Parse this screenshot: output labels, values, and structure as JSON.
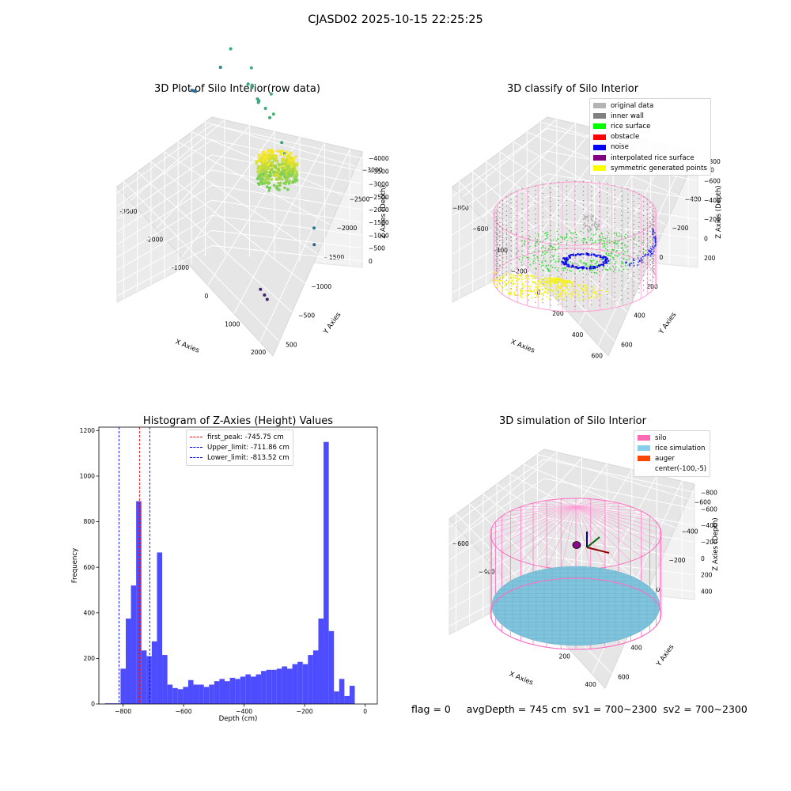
{
  "figure_title": "CJASD02 2025-10-15 22:25:25",
  "footer": {
    "flag": "flag = 0",
    "status": "avgDepth = 745 cm  sv1 = 700~2300  sv2 = 700~2300"
  },
  "chart_data": [
    {
      "type": "scatter",
      "projection": "3d",
      "title": "3D Plot of Silo Interior(row data)",
      "xlabel": "X Axies",
      "ylabel": "Y Axies",
      "zlabel": "Z Axies (Depth)",
      "xlim": [
        -3500,
        2500
      ],
      "ylim": [
        -3200,
        800
      ],
      "zlim": [
        -4200,
        200
      ],
      "xticks": [
        "-3000",
        "-2000",
        "-1000",
        "0",
        "1000",
        "2000"
      ],
      "yticks": [
        "500",
        "−500",
        "−1000",
        "−1500",
        "−2000",
        "−2500",
        "−3000"
      ],
      "zticks": [
        "0",
        "−500",
        "−1000",
        "−1500",
        "−2000",
        "−2500",
        "−3000",
        "−3500",
        "−4000"
      ],
      "colormap": "viridis",
      "points": [
        {
          "x": 1200,
          "y": -2300,
          "z": -3800
        },
        {
          "x": 1400,
          "y": -2350,
          "z": -3780
        },
        {
          "x": 1550,
          "y": -2400,
          "z": -3760
        },
        {
          "x": -3200,
          "y": -300,
          "z": -2700
        },
        {
          "x": -3250,
          "y": -320,
          "z": -2720
        },
        {
          "x": -3150,
          "y": -280,
          "z": -2690
        },
        {
          "x": -2900,
          "y": 500,
          "z": -2200
        },
        {
          "x": -2600,
          "y": 600,
          "z": -1500
        },
        {
          "x": 1800,
          "y": -700,
          "z": -2400
        },
        {
          "x": 1850,
          "y": -750,
          "z": -2800
        },
        {
          "x": -1600,
          "y": 400,
          "z": -1700
        },
        {
          "x": -1700,
          "y": 350,
          "z": -1650
        },
        {
          "x": -1500,
          "y": 300,
          "z": -1500
        },
        {
          "x": -1800,
          "y": 600,
          "z": -1400
        },
        {
          "x": -1200,
          "y": 200,
          "z": -1600
        },
        {
          "x": -1100,
          "y": 150,
          "z": -1550
        },
        {
          "x": -1150,
          "y": 180,
          "z": -1650
        },
        {
          "x": -800,
          "y": 100,
          "z": -1500
        },
        {
          "x": -500,
          "y": -50,
          "z": -1450
        },
        {
          "x": -400,
          "y": 0,
          "z": -1300
        },
        {
          "x": 100,
          "y": -200,
          "z": -1600
        },
        {
          "x": 300,
          "y": -300,
          "z": -1700
        },
        {
          "x": -900,
          "y": 450,
          "z": -1350
        }
      ],
      "surface_ring": {
        "center_x": -100,
        "center_y": -50,
        "outer_radius": 700,
        "inner_radius": 250,
        "z_range": [
          -900,
          -100
        ]
      }
    },
    {
      "type": "scatter",
      "projection": "3d",
      "title": "3D classify of Silo Interior",
      "xlabel": "X Axies",
      "ylabel": "Y Axies",
      "zlabel": "Z Axies (Depth)",
      "xlim": [
        -800,
        600
      ],
      "ylim": [
        -700,
        700
      ],
      "zlim": [
        -900,
        300
      ],
      "xticks": [
        "−800",
        "−600",
        "−400",
        "−200",
        "0",
        "200",
        "400",
        "600"
      ],
      "yticks": [
        "600",
        "400",
        "200",
        "0",
        "−200",
        "−400",
        "−600"
      ],
      "zticks": [
        "200",
        "0",
        "−200",
        "−400",
        "−600",
        "−800"
      ],
      "legend": {
        "location": "upper right",
        "entries": [
          {
            "label": "original data",
            "color": "#b3b3b3"
          },
          {
            "label": "inner wall",
            "color": "#808080"
          },
          {
            "label": "rice surface",
            "color": "#00ff00"
          },
          {
            "label": "obstacle",
            "color": "#ff0000"
          },
          {
            "label": "noise",
            "color": "#0000ff"
          },
          {
            "label": "interpolated rice surface",
            "color": "#800080"
          },
          {
            "label": "symmetric generated points",
            "color": "#ffff00"
          }
        ]
      },
      "silo": {
        "radius": 600,
        "z_top": 250,
        "z_bottom": -800
      },
      "classes": {
        "inner_wall": {
          "radius": 600,
          "z_range": [
            -780,
            -200
          ]
        },
        "rice_surface": {
          "radius_range": [
            180,
            560
          ],
          "z": -650
        },
        "noise_ring": {
          "radius": 180,
          "z": -560
        },
        "symmetric": {
          "radius_range": [
            0,
            560
          ],
          "z": -740
        }
      }
    },
    {
      "type": "bar",
      "title": "Histogram of Z-Axies (Height) Values",
      "xlabel": "Depth (cm)",
      "ylabel": "Frequency",
      "xlim": [
        -880,
        40
      ],
      "ylim": [
        0,
        1215
      ],
      "xticks": [
        -800,
        -600,
        -400,
        -200,
        0
      ],
      "xtick_labels": [
        "−800",
        "−600",
        "−400",
        "−200",
        "0"
      ],
      "yticks": [
        0,
        200,
        400,
        600,
        800,
        1000,
        1200
      ],
      "bar_color": "#4d4dff",
      "bin_start": -860,
      "bin_width": 17.2,
      "values": [
        3,
        3,
        3,
        155,
        375,
        520,
        890,
        235,
        210,
        275,
        665,
        215,
        85,
        70,
        65,
        75,
        105,
        85,
        85,
        75,
        85,
        100,
        110,
        100,
        115,
        110,
        120,
        130,
        120,
        130,
        145,
        150,
        150,
        155,
        165,
        155,
        175,
        185,
        175,
        215,
        235,
        375,
        1150,
        320,
        55,
        110,
        35,
        80
      ],
      "reference_lines": [
        {
          "label": "first_peak: -745.75 cm",
          "x": -745.75,
          "color": "#ff0000"
        },
        {
          "label": "Upper_limit: -711.86 cm",
          "x": -711.86,
          "color": "#0000ff"
        },
        {
          "label": "Lower_limit: -813.52 cm",
          "x": -813.52,
          "color": "#0000ff"
        }
      ],
      "legend_location": "upper center",
      "grid": false
    },
    {
      "type": "scatter",
      "projection": "3d",
      "title": "3D simulation of Silo Interior",
      "xlabel": "X Axies",
      "ylabel": "Y Axies",
      "zlabel": "Z Axies (Depth)",
      "xlim": [
        -700,
        500
      ],
      "ylim": [
        -600,
        700
      ],
      "zlim": [
        -900,
        450
      ],
      "xticks": [
        "−600",
        "−400",
        "−200",
        "0",
        "200",
        "400"
      ],
      "yticks": [
        "600",
        "400",
        "200",
        "0",
        "−200",
        "−400",
        "−600"
      ],
      "zticks": [
        "400",
        "200",
        "0",
        "−200",
        "−400",
        "−600",
        "−800"
      ],
      "legend": {
        "location": "upper right",
        "entries": [
          {
            "label": "silo",
            "color": "#ff69b4"
          },
          {
            "label": "rice simulation",
            "color": "#87ceeb"
          },
          {
            "label": "auger",
            "color": "#ff4500"
          },
          {
            "label": "center(-100,-5)",
            "color": ""
          }
        ]
      },
      "silo": {
        "radius": 600,
        "z_top": 250,
        "z_bottom": -800
      },
      "rice_level": -745,
      "auger_center": {
        "x": -100,
        "y": -5
      }
    }
  ]
}
